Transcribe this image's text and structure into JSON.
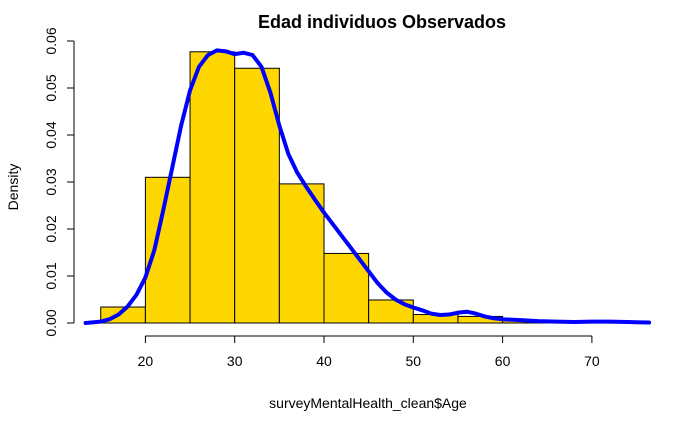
{
  "chart_data": {
    "type": "bar",
    "title": "Edad individuos Observados",
    "xlabel": "surveyMentalHealth_clean$Age",
    "ylabel": "Density",
    "xlim": [
      13.3,
      76.4
    ],
    "ylim": [
      0,
      0.06
    ],
    "x_ticks": [
      "20",
      "30",
      "40",
      "50",
      "60",
      "70"
    ],
    "y_ticks": [
      "0.00",
      "0.01",
      "0.02",
      "0.03",
      "0.04",
      "0.05",
      "0.06"
    ],
    "bar_color": "#FFD700",
    "bar_edge_color": "#000000",
    "density_color": "#0000FF",
    "bins": [
      {
        "start": 15,
        "end": 20,
        "value": 0.0034
      },
      {
        "start": 20,
        "end": 25,
        "value": 0.031
      },
      {
        "start": 25,
        "end": 30,
        "value": 0.0577
      },
      {
        "start": 30,
        "end": 35,
        "value": 0.0542
      },
      {
        "start": 35,
        "end": 40,
        "value": 0.0296
      },
      {
        "start": 40,
        "end": 45,
        "value": 0.0148
      },
      {
        "start": 45,
        "end": 50,
        "value": 0.0049
      },
      {
        "start": 50,
        "end": 55,
        "value": 0.0018
      },
      {
        "start": 55,
        "end": 60,
        "value": 0.0014
      },
      {
        "start": 60,
        "end": 65,
        "value": 0.0006
      },
      {
        "start": 65,
        "end": 70,
        "value": 0.0002
      },
      {
        "start": 70,
        "end": 75,
        "value": 0.0002
      }
    ],
    "series": [
      {
        "type": "line",
        "x": [
          13.3,
          15,
          16,
          17,
          18,
          19,
          20,
          21,
          22,
          23,
          24,
          25,
          26,
          27,
          28,
          29,
          30,
          31,
          32,
          33,
          34,
          35,
          36,
          37,
          38,
          39,
          40,
          41,
          42,
          43,
          44,
          45,
          46,
          47,
          48,
          49,
          50,
          51,
          52,
          53,
          54,
          55,
          56,
          57,
          58,
          59,
          60,
          62,
          64,
          66,
          68,
          70,
          72,
          74,
          76.4
        ],
        "y": [
          0.0,
          0.0003,
          0.0008,
          0.0018,
          0.0035,
          0.006,
          0.0097,
          0.0155,
          0.024,
          0.033,
          0.042,
          0.0495,
          0.0545,
          0.057,
          0.058,
          0.0578,
          0.0572,
          0.0575,
          0.057,
          0.0545,
          0.049,
          0.042,
          0.036,
          0.032,
          0.029,
          0.0262,
          0.0235,
          0.021,
          0.0185,
          0.016,
          0.0135,
          0.011,
          0.0085,
          0.0065,
          0.005,
          0.004,
          0.0033,
          0.0027,
          0.002,
          0.0017,
          0.0018,
          0.0022,
          0.0024,
          0.002,
          0.0014,
          0.001,
          0.0008,
          0.0006,
          0.0004,
          0.0003,
          0.0002,
          0.0003,
          0.0003,
          0.0002,
          0.0001
        ]
      }
    ]
  }
}
